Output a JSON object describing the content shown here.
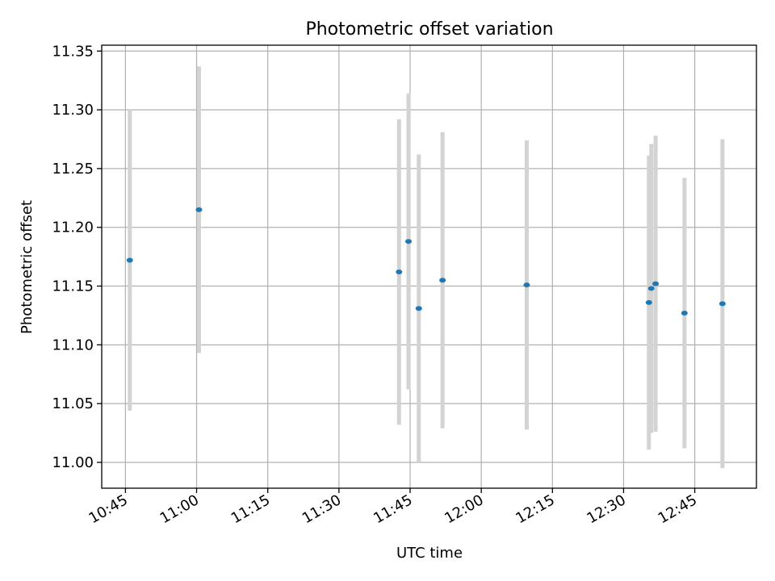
{
  "chart_data": {
    "type": "scatter",
    "title": "Photometric offset variation",
    "xlabel": "UTC time",
    "ylabel": "Photometric offset",
    "xlim_minutes": [
      640,
      778
    ],
    "ylim": [
      10.978,
      11.355
    ],
    "grid": true,
    "x_ticks": [
      {
        "label": "10:45",
        "value": 645
      },
      {
        "label": "11:00",
        "value": 660
      },
      {
        "label": "11:15",
        "value": 675
      },
      {
        "label": "11:30",
        "value": 690
      },
      {
        "label": "11:45",
        "value": 705
      },
      {
        "label": "12:00",
        "value": 720
      },
      {
        "label": "12:15",
        "value": 735
      },
      {
        "label": "12:30",
        "value": 750
      },
      {
        "label": "12:45",
        "value": 765
      }
    ],
    "y_ticks": [
      {
        "label": "11.00",
        "value": 11.0
      },
      {
        "label": "11.05",
        "value": 11.05
      },
      {
        "label": "11.10",
        "value": 11.1
      },
      {
        "label": "11.15",
        "value": 11.15
      },
      {
        "label": "11.20",
        "value": 11.2
      },
      {
        "label": "11.25",
        "value": 11.25
      },
      {
        "label": "11.30",
        "value": 11.3
      },
      {
        "label": "11.35",
        "value": 11.35
      }
    ],
    "points": [
      {
        "t": "10:45:55",
        "y": 11.172,
        "err": 0.128
      },
      {
        "t": "11:00:30",
        "y": 11.215,
        "err": 0.122
      },
      {
        "t": "11:42:40",
        "y": 11.162,
        "err": 0.13
      },
      {
        "t": "11:44:40",
        "y": 11.188,
        "err": 0.126
      },
      {
        "t": "11:46:50",
        "y": 11.131,
        "err": 0.131
      },
      {
        "t": "11:51:50",
        "y": 11.155,
        "err": 0.126
      },
      {
        "t": "12:09:35",
        "y": 11.151,
        "err": 0.123
      },
      {
        "t": "12:35:20",
        "y": 11.136,
        "err": 0.125
      },
      {
        "t": "12:35:50",
        "y": 11.148,
        "err": 0.123
      },
      {
        "t": "12:36:45",
        "y": 11.152,
        "err": 0.126
      },
      {
        "t": "12:42:50",
        "y": 11.127,
        "err": 0.115
      },
      {
        "t": "12:50:50",
        "y": 11.135,
        "err": 0.14
      }
    ]
  }
}
